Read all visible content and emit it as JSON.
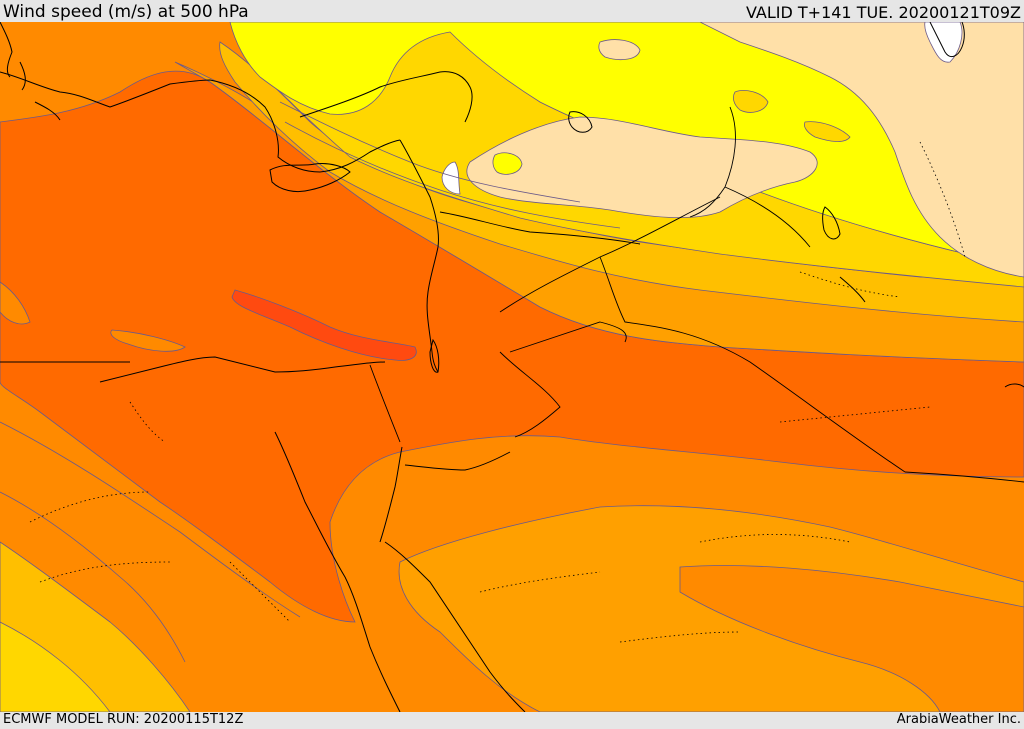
{
  "header": {
    "title": "Wind speed (m/s) at 500 hPa",
    "valid_time": "VALID T+141 TUE. 20200121T09Z"
  },
  "footer": {
    "model_run": "ECMWF MODEL RUN: 20200115T12Z",
    "credit": "ArabiaWeather Inc."
  },
  "map": {
    "field": "wind speed 500 hPa",
    "colors": {
      "band_white": "#ffffff",
      "band_lightest": "#ffe0a8",
      "band_yellow": "#ffff00",
      "band_gold": "#ffd700",
      "band_amber": "#ffbf00",
      "band_orange_light": "#ffa000",
      "band_orange": "#ff8000",
      "band_orange_dark": "#ff6a00",
      "band_red_orange": "#ff4a10",
      "contour_line": "#6b5a8a",
      "coast_border_line": "#000000"
    }
  }
}
